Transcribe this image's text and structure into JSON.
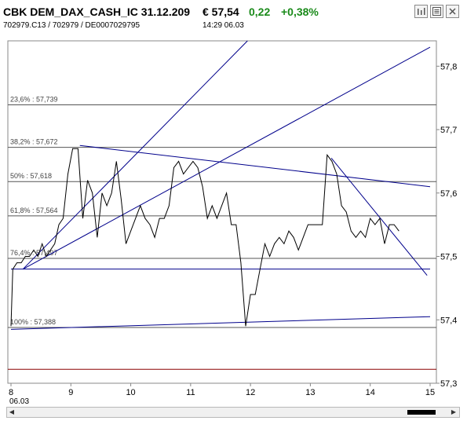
{
  "header": {
    "title": "CBK DEM_DAX_CASH_IC 31.12.209",
    "price": "€ 57,54",
    "change": "0,22",
    "change_pct": "+0,38%",
    "ids": "702979.C13  /  702979  /  DE0007029795",
    "time": "14:29   06.03",
    "icons": [
      "bar-chart-icon",
      "news-icon",
      "close-icon"
    ]
  },
  "colors": {
    "up": "#1a8a1a",
    "price_line": "#000000",
    "trendline": "#00008b",
    "level_line": "#555555",
    "bottom_line": "#8b0000"
  },
  "chart_data": {
    "type": "line",
    "x_ticks": [
      "8",
      "9",
      "10",
      "11",
      "12",
      "13",
      "14",
      "15"
    ],
    "x_date_label": "06.03",
    "x_range": [
      8,
      15
    ],
    "y_ticks": [
      "57,3",
      "57,4",
      "57,5",
      "57,6",
      "57,7",
      "57,8"
    ],
    "y_range": [
      57.3,
      57.84
    ],
    "fib_levels": [
      {
        "label": "23,6% : 57,739",
        "value": 57.739
      },
      {
        "label": "38,2% : 57,672",
        "value": 57.672
      },
      {
        "label": "50% : 57,618",
        "value": 57.618
      },
      {
        "label": "61,8% : 57,564",
        "value": 57.564
      },
      {
        "label": "76,4% : 57,497",
        "value": 57.497
      },
      {
        "label": "100% : 57,388",
        "value": 57.388
      }
    ],
    "bottom_level": 57.322,
    "trendlines": [
      {
        "x1": 8.2,
        "y1": 57.48,
        "x2": 11.95,
        "y2": 57.84
      },
      {
        "x1": 8.2,
        "y1": 57.48,
        "x2": 15.0,
        "y2": 57.83
      },
      {
        "x1": 9.15,
        "y1": 57.675,
        "x2": 15.0,
        "y2": 57.61
      },
      {
        "x1": 8.0,
        "y1": 57.48,
        "x2": 15.0,
        "y2": 57.48
      },
      {
        "x1": 8.0,
        "y1": 57.385,
        "x2": 15.0,
        "y2": 57.405
      },
      {
        "x1": 13.35,
        "y1": 57.655,
        "x2": 14.95,
        "y2": 57.47
      }
    ],
    "series": [
      {
        "x": [
          8.0,
          8.03,
          8.1,
          8.17,
          8.24,
          8.31,
          8.38,
          8.45,
          8.52,
          8.59,
          8.66,
          8.73,
          8.8,
          8.87,
          8.95,
          9.03,
          9.12,
          9.2,
          9.28,
          9.36,
          9.44,
          9.52,
          9.6,
          9.68,
          9.76,
          9.84,
          9.92,
          10.0,
          10.08,
          10.16,
          10.24,
          10.32,
          10.4,
          10.48,
          10.56,
          10.64,
          10.72,
          10.8,
          10.88,
          10.96,
          11.04,
          11.12,
          11.2,
          11.28,
          11.36,
          11.44,
          11.52,
          11.6,
          11.68,
          11.76,
          11.84,
          11.92,
          12.0,
          12.08,
          12.16,
          12.24,
          12.32,
          12.4,
          12.48,
          12.56,
          12.64,
          12.72,
          12.8,
          12.88,
          12.96,
          13.04,
          13.12,
          13.2,
          13.28,
          13.36,
          13.44,
          13.52,
          13.6,
          13.68,
          13.76,
          13.84,
          13.92,
          14.0,
          14.08,
          14.16,
          14.24,
          14.32,
          14.4,
          14.48
        ],
        "y": [
          57.39,
          57.48,
          57.49,
          57.49,
          57.5,
          57.5,
          57.51,
          57.5,
          57.52,
          57.5,
          57.51,
          57.52,
          57.55,
          57.56,
          57.63,
          57.67,
          57.67,
          57.56,
          57.62,
          57.6,
          57.53,
          57.6,
          57.58,
          57.6,
          57.65,
          57.59,
          57.52,
          57.54,
          57.56,
          57.58,
          57.56,
          57.55,
          57.53,
          57.56,
          57.56,
          57.58,
          57.64,
          57.65,
          57.63,
          57.64,
          57.65,
          57.64,
          57.61,
          57.56,
          57.58,
          57.56,
          57.58,
          57.6,
          57.55,
          57.55,
          57.49,
          57.39,
          57.44,
          57.44,
          57.48,
          57.52,
          57.5,
          57.52,
          57.53,
          57.52,
          57.54,
          57.53,
          57.51,
          57.53,
          57.55,
          57.55,
          57.55,
          57.55,
          57.66,
          57.65,
          57.63,
          57.58,
          57.57,
          57.54,
          57.53,
          57.54,
          57.53,
          57.56,
          57.55,
          57.56,
          57.52,
          57.55,
          57.55,
          57.54
        ]
      }
    ]
  }
}
